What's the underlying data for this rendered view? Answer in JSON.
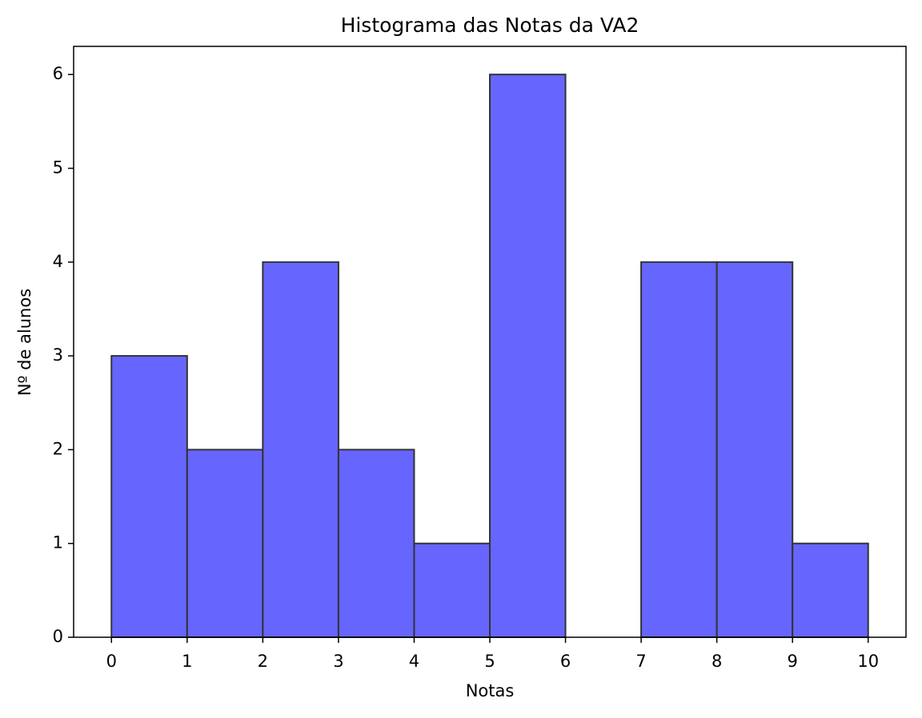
{
  "chart_data": {
    "type": "histogram",
    "title": "Histograma das Notas da VA2",
    "xlabel": "Notas",
    "ylabel": "Nº de alunos",
    "bins": [
      0,
      1,
      2,
      3,
      4,
      5,
      6,
      7,
      8,
      9,
      10
    ],
    "values": [
      3,
      2,
      4,
      2,
      1,
      6,
      0,
      4,
      4,
      1
    ],
    "color": "#6666ff",
    "edgecolor": "#333333",
    "xlim": [
      -0.5,
      10.5
    ],
    "ylim": [
      0,
      6.3
    ],
    "xticks": [
      0,
      1,
      2,
      3,
      4,
      5,
      6,
      7,
      8,
      9,
      10
    ],
    "yticks": [
      0,
      1,
      2,
      3,
      4,
      5,
      6
    ],
    "grid": false
  }
}
